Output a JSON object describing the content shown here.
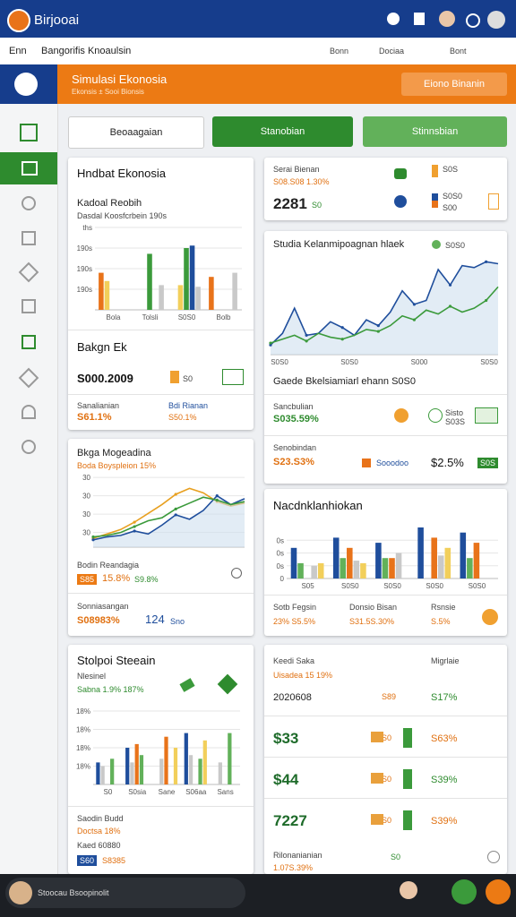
{
  "app_bar": {
    "title": "Birjooai"
  },
  "nav": {
    "left": [
      "Enn",
      "Bangorifis Knoaulsin"
    ],
    "right": [
      "Bonn",
      "Dociaa",
      "Bont"
    ]
  },
  "header": {
    "title": "Simulasi Ekonosia",
    "subtitle": "Ekonsis ± Sooi Bionsis",
    "button": "Eiono Binanin"
  },
  "buttons": [
    "Beoaagaian",
    "Stanobian",
    "Stinnsbian"
  ],
  "left_cards": [
    {
      "title": "Hndbat Ekonosia",
      "subtitle": "Kadoal Reobih",
      "caption": "Dasdal Koosfcrbein 190s",
      "section": "Bakgn Ek",
      "amount": "S000.2009",
      "unit": "S0",
      "stats": [
        {
          "label": "Sanalianian",
          "value": "S61.1%"
        },
        {
          "label": "Bdi Rianan",
          "value": "S50.1%"
        }
      ]
    },
    {
      "title": "Bkga Mogeadina",
      "subtitle": "Boda Boyspleion 15%",
      "label": "Bodin Reandagia",
      "badge": "S85",
      "value": "15.8%",
      "change": "S9.8%",
      "footer_label": "Sonniasangan",
      "footer_value": "S08983%",
      "footer_number": "124",
      "footer_unit": "Sno"
    },
    {
      "title": "Stolpoi Steeain",
      "subtitle": "Nlesinel",
      "caption": "Sabna 1.9% 187%",
      "stats": [
        "Saodin Budd",
        "Doctsa 18%",
        "Kaed 60880",
        "S60",
        "S8385"
      ]
    }
  ],
  "right_cards": [
    {
      "title": "Serai Bienan",
      "subtitle": "S08.S08 1.30%",
      "value": "2281",
      "unit": "S0",
      "legend": [
        "S0S",
        "S0S0",
        "S00"
      ]
    },
    {
      "title": "Studia Kelanmipoagnan hlaek",
      "badge": "S0S0",
      "section": "Gaede Bkelsiamiarl ehann S0S0",
      "rows": [
        {
          "label": "Sancbulian",
          "value": "S035.59%",
          "side": [
            "Sisto",
            "S03S"
          ]
        },
        {
          "label": "Senobindan",
          "value": "S23.S3%",
          "side": [
            "Sooodoo",
            "$2.5%",
            "S0S"
          ]
        }
      ]
    },
    {
      "title": "Nacdnklanhiokan",
      "stats": [
        {
          "label": "Sotb Fegsin",
          "value": "23% S5.5%"
        },
        {
          "label": "Donsio Bisan",
          "value": "S31.5S.30%"
        },
        {
          "label": "Rsnsie",
          "value": "S.5%"
        }
      ]
    },
    {
      "title": "Keedi Saka",
      "subtitle": "Uisadea 15 19%",
      "column": "Migrlaie",
      "rows": [
        [
          "2020608",
          "S89",
          "S17%"
        ],
        [
          "$33",
          "S0",
          "S63%"
        ],
        [
          "$44",
          "S0",
          "S39%"
        ],
        [
          "7227",
          "S0",
          "S39%"
        ]
      ],
      "footer": [
        "Rilonanianian",
        "1.07S.39%",
        "S0"
      ]
    }
  ],
  "charts": [
    {
      "type": "bar",
      "ylim": [
        0,
        100
      ],
      "yticks": [
        {
          "value": 25,
          "label": "190s"
        },
        {
          "value": 50,
          "label": "190s"
        },
        {
          "value": 75,
          "label": "190s"
        },
        {
          "value": 100,
          "label": "ths"
        }
      ],
      "categories": [
        "Bola",
        "Tolsli",
        "S0S0",
        "Bolb"
      ],
      "series": [
        {
          "color": "#e8731a",
          "values": [
            45,
            0,
            0,
            40
          ]
        },
        {
          "color": "#f2cf5b",
          "values": [
            35,
            0,
            30,
            0
          ]
        },
        {
          "color": "#3b9a3b",
          "values": [
            0,
            68,
            75,
            0
          ]
        },
        {
          "color": "#1f4e9c",
          "values": [
            0,
            0,
            78,
            0
          ]
        },
        {
          "color": "#c9c9c9",
          "values": [
            0,
            30,
            28,
            45
          ]
        }
      ]
    },
    {
      "type": "line",
      "area": true,
      "ylim": [
        0,
        100
      ],
      "yticks": [
        {
          "value": 20,
          "label": "30"
        },
        {
          "value": 45,
          "label": "30"
        },
        {
          "value": 70,
          "label": "30"
        },
        {
          "value": 95,
          "label": "30"
        }
      ],
      "series": [
        {
          "color": "#e8a020",
          "values": [
            12,
            18,
            24,
            34,
            46,
            58,
            72,
            80,
            74,
            62,
            56,
            60
          ]
        },
        {
          "color": "#1f4e9c",
          "values": [
            10,
            14,
            16,
            22,
            18,
            30,
            44,
            38,
            50,
            70,
            58,
            66
          ]
        },
        {
          "color": "#3b9a3b",
          "values": [
            14,
            16,
            20,
            28,
            36,
            40,
            52,
            60,
            68,
            64,
            58,
            62
          ]
        }
      ]
    },
    {
      "type": "bar",
      "ylim": [
        0,
        100
      ],
      "yticks": [
        {
          "value": 25,
          "label": "18%"
        },
        {
          "value": 50,
          "label": "18%"
        },
        {
          "value": 75,
          "label": "18%"
        },
        {
          "value": 100,
          "label": "18%"
        }
      ],
      "categories": [
        "S0",
        "S0sia",
        "Sane",
        "S06aa",
        "Sans"
      ],
      "series": [
        {
          "color": "#1f4e9c",
          "values": [
            30,
            50,
            0,
            70,
            0
          ]
        },
        {
          "color": "#c9c9c9",
          "values": [
            25,
            30,
            35,
            40,
            30
          ]
        },
        {
          "color": "#e8731a",
          "values": [
            0,
            55,
            65,
            0,
            0
          ]
        },
        {
          "color": "#62b15a",
          "values": [
            35,
            40,
            0,
            35,
            70
          ]
        },
        {
          "color": "#f2cf5b",
          "values": [
            0,
            0,
            50,
            60,
            0
          ]
        }
      ]
    },
    {
      "type": "line",
      "area": true,
      "ylim": [
        0,
        100
      ],
      "xlabels": [
        "S0S0",
        "S0S0",
        "S000",
        "S0S0"
      ],
      "yticks": [],
      "series": [
        {
          "color": "#1f4e9c",
          "values": [
            10,
            22,
            48,
            20,
            22,
            34,
            28,
            20,
            36,
            30,
            44,
            66,
            52,
            56,
            88,
            72,
            92,
            90,
            96,
            94
          ]
        },
        {
          "color": "#3b9a3b",
          "values": [
            12,
            16,
            20,
            14,
            22,
            18,
            16,
            20,
            26,
            24,
            30,
            40,
            36,
            46,
            42,
            50,
            44,
            48,
            56,
            70
          ]
        }
      ]
    },
    {
      "type": "bar",
      "ylim": [
        0,
        100
      ],
      "yticks": [
        {
          "value": 0,
          "label": "0"
        },
        {
          "value": 25,
          "label": "0s"
        },
        {
          "value": 50,
          "label": "0s"
        },
        {
          "value": 75,
          "label": "0s"
        }
      ],
      "categories": [
        "S05",
        "S0S0",
        "S0S0",
        "S0S0",
        "S0S0"
      ],
      "series": [
        {
          "color": "#1f4e9c",
          "values": [
            60,
            80,
            70,
            100,
            90
          ]
        },
        {
          "color": "#62b15a",
          "values": [
            30,
            40,
            40,
            0,
            40
          ]
        },
        {
          "color": "#e8731a",
          "values": [
            0,
            60,
            40,
            80,
            70
          ]
        },
        {
          "color": "#c9c9c9",
          "values": [
            25,
            35,
            50,
            45,
            0
          ]
        },
        {
          "color": "#f2cf5b",
          "values": [
            30,
            30,
            0,
            60,
            0
          ]
        }
      ]
    }
  ],
  "footer": {
    "user": "Stoocau Bsoopinolit"
  }
}
